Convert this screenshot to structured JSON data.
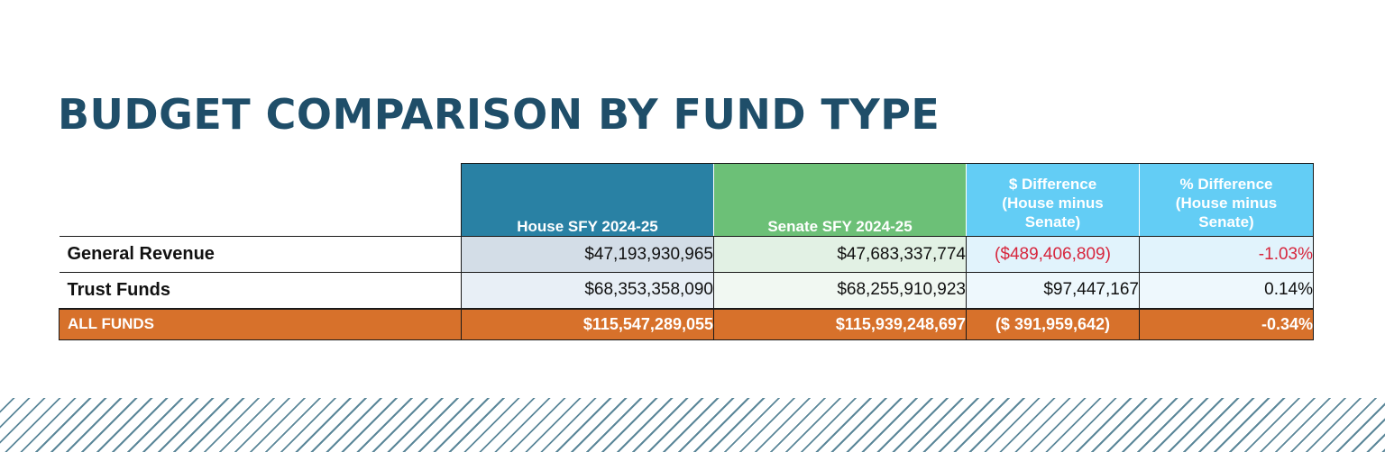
{
  "title": "BUDGET COMPARISON BY FUND TYPE",
  "table": {
    "headers": {
      "label": "",
      "house": "House SFY 2024-25",
      "senate": "Senate SFY 2024-25",
      "diff_line1": "$ Difference",
      "diff_line2": "(House minus",
      "diff_line3": "Senate)",
      "pct_line1": "% Difference",
      "pct_line2": "(House minus",
      "pct_line3": "Senate)"
    },
    "rows": [
      {
        "label": "General Revenue",
        "house": "$47,193,930,965",
        "senate": "$47,683,337,774",
        "diff": "($489,406,809)",
        "pct": "-1.03%"
      },
      {
        "label": "Trust Funds",
        "house": "$68,353,358,090",
        "senate": "$68,255,910,923",
        "diff": "$97,447,167",
        "pct": "0.14%"
      }
    ],
    "total": {
      "label": "ALL FUNDS",
      "house": "$115,547,289,055",
      "senate": "$115,939,248,697",
      "diff": "($ 391,959,642)",
      "pct": "-0.34%"
    }
  },
  "colors": {
    "title": "#1f4e69",
    "house_header": "#2981a4",
    "senate_header": "#6cc077",
    "difference_header": "#63cdf5",
    "total_row": "#d7712b",
    "negative_value": "#d7263d",
    "stripe": "#5b8799"
  }
}
